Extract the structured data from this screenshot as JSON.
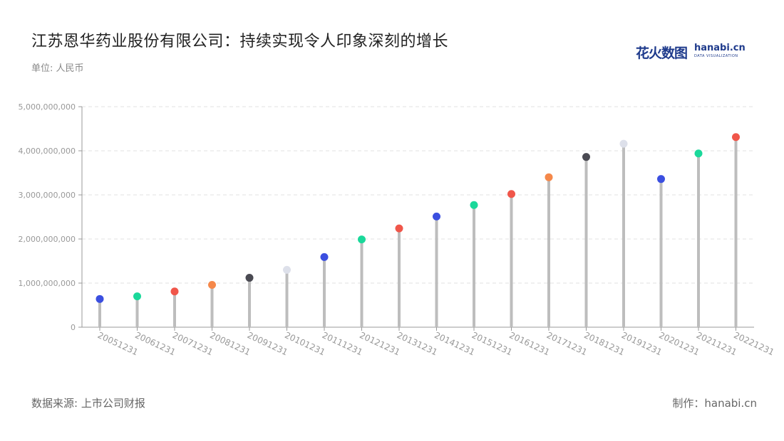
{
  "title": "江苏恩华药业股份有限公司：持续实现令人印象深刻的增长",
  "unit_label": "单位: 人民币",
  "source_label": "数据来源: 上市公司财报",
  "credit_label": "制作：hanabi.cn",
  "logo": {
    "cn": "花火数图",
    "en": "hanabi.cn",
    "sub": "DATA VISUALIZATION"
  },
  "chart_data": {
    "type": "scatter",
    "style": "lollipop",
    "categories": [
      "20051231",
      "20061231",
      "20071231",
      "20081231",
      "20091231",
      "20101231",
      "20111231",
      "20121231",
      "20131231",
      "20141231",
      "20151231",
      "20161231",
      "20171231",
      "20181231",
      "20191231",
      "20201231",
      "20211231",
      "20221231"
    ],
    "values": [
      640000000,
      700000000,
      810000000,
      960000000,
      1120000000,
      1300000000,
      1590000000,
      1990000000,
      2240000000,
      2510000000,
      2770000000,
      3020000000,
      3400000000,
      3860000000,
      4160000000,
      3360000000,
      3940000000,
      4310000000
    ],
    "point_colors": [
      "#3b4fe0",
      "#1ad89a",
      "#f0564a",
      "#f5884a",
      "#4a4a52",
      "#dde0ea",
      "#3b4fe0",
      "#1ad89a",
      "#f0564a",
      "#3b4fe0",
      "#1ad89a",
      "#f0564a",
      "#f5884a",
      "#4a4a52",
      "#dde0ea",
      "#3b4fe0",
      "#1ad89a",
      "#f0564a"
    ],
    "stem_color": "#bdbdbd",
    "ylim": [
      0,
      5000000000
    ],
    "yticks": [
      0,
      1000000000,
      2000000000,
      3000000000,
      4000000000,
      5000000000
    ],
    "ytick_labels": [
      "0",
      "1,000,000,000",
      "2,000,000,000",
      "3,000,000,000",
      "4,000,000,000",
      "5,000,000,000"
    ],
    "grid": true
  }
}
